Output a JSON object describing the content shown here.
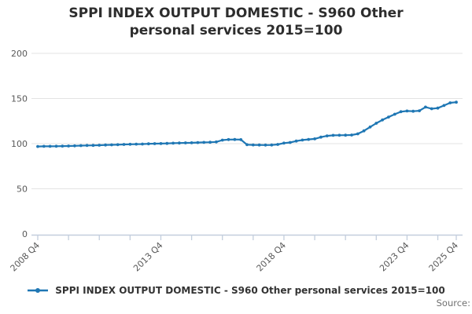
{
  "title": "SPPI INDEX OUTPUT DOMESTIC - S960 Other personal services 2015=100",
  "source_label": "Source:",
  "legend": {
    "label": "SPPI INDEX OUTPUT DOMESTIC - S960 Other personal services 2015=100",
    "marker_icon": "line-dot-icon"
  },
  "colors": {
    "line": "#1f77b4",
    "grid": "#e3e3e3",
    "axis": "#c3cedd",
    "title_text": "#2d2d2d",
    "tick_text": "#595959"
  },
  "chart_data": {
    "type": "line",
    "title": "SPPI INDEX OUTPUT DOMESTIC - S960 Other personal services 2015=100",
    "xlabel": "",
    "ylabel": "",
    "ylim": [
      0,
      215
    ],
    "y_ticks": [
      0,
      50,
      100,
      150,
      200
    ],
    "grid": "horizontal",
    "legend_position": "bottom",
    "x_labeled_ticks": [
      {
        "i": 0,
        "label": "2008 Q4"
      },
      {
        "i": 20,
        "label": "2013 Q4"
      },
      {
        "i": 40,
        "label": "2018 Q4"
      },
      {
        "i": 60,
        "label": "2023 Q4"
      },
      {
        "i": 68,
        "label": "2025 Q4"
      }
    ],
    "x_minor_tick_indices": [
      0,
      5,
      10,
      15,
      20,
      25,
      30,
      35,
      40,
      45,
      50,
      55,
      60,
      65,
      68
    ],
    "x": [
      "2008 Q4",
      "2009 Q1",
      "2009 Q2",
      "2009 Q3",
      "2009 Q4",
      "2010 Q1",
      "2010 Q2",
      "2010 Q3",
      "2010 Q4",
      "2011 Q1",
      "2011 Q2",
      "2011 Q3",
      "2011 Q4",
      "2012 Q1",
      "2012 Q2",
      "2012 Q3",
      "2012 Q4",
      "2013 Q1",
      "2013 Q2",
      "2013 Q3",
      "2013 Q4",
      "2014 Q1",
      "2014 Q2",
      "2014 Q3",
      "2014 Q4",
      "2015 Q1",
      "2015 Q2",
      "2015 Q3",
      "2015 Q4",
      "2016 Q1",
      "2016 Q2",
      "2016 Q3",
      "2016 Q4",
      "2017 Q1",
      "2017 Q2",
      "2017 Q3",
      "2017 Q4",
      "2018 Q1",
      "2018 Q2",
      "2018 Q3",
      "2018 Q4",
      "2019 Q1",
      "2019 Q2",
      "2019 Q3",
      "2019 Q4",
      "2020 Q1",
      "2020 Q2",
      "2020 Q3",
      "2020 Q4",
      "2021 Q1",
      "2021 Q2",
      "2021 Q3",
      "2021 Q4",
      "2022 Q1",
      "2022 Q2",
      "2022 Q3",
      "2022 Q4",
      "2023 Q1",
      "2023 Q2",
      "2023 Q3",
      "2023 Q4",
      "2024 Q1",
      "2024 Q2",
      "2024 Q3",
      "2024 Q4",
      "2025 Q1",
      "2025 Q2",
      "2025 Q3",
      "2025 Q4"
    ],
    "values": [
      96.9,
      97.0,
      97.0,
      97.1,
      97.3,
      97.4,
      97.6,
      97.8,
      98.0,
      98.1,
      98.3,
      98.5,
      98.7,
      98.9,
      99.1,
      99.3,
      99.5,
      99.6,
      99.8,
      100.0,
      100.1,
      100.3,
      100.5,
      100.7,
      100.9,
      101.0,
      101.2,
      101.4,
      101.6,
      101.9,
      103.9,
      104.5,
      104.6,
      104.4,
      98.9,
      98.6,
      98.5,
      98.4,
      98.5,
      99.1,
      100.6,
      101.3,
      102.9,
      104.0,
      104.7,
      105.3,
      107.2,
      108.6,
      109.2,
      109.3,
      109.4,
      109.6,
      110.9,
      114.2,
      118.4,
      122.6,
      126.3,
      129.5,
      132.6,
      135.4,
      136.2,
      135.9,
      136.4,
      140.5,
      138.7,
      139.4,
      142.3,
      145.2,
      145.9
    ],
    "series_name": "SPPI INDEX OUTPUT DOMESTIC - S960 Other personal services 2015=100"
  }
}
